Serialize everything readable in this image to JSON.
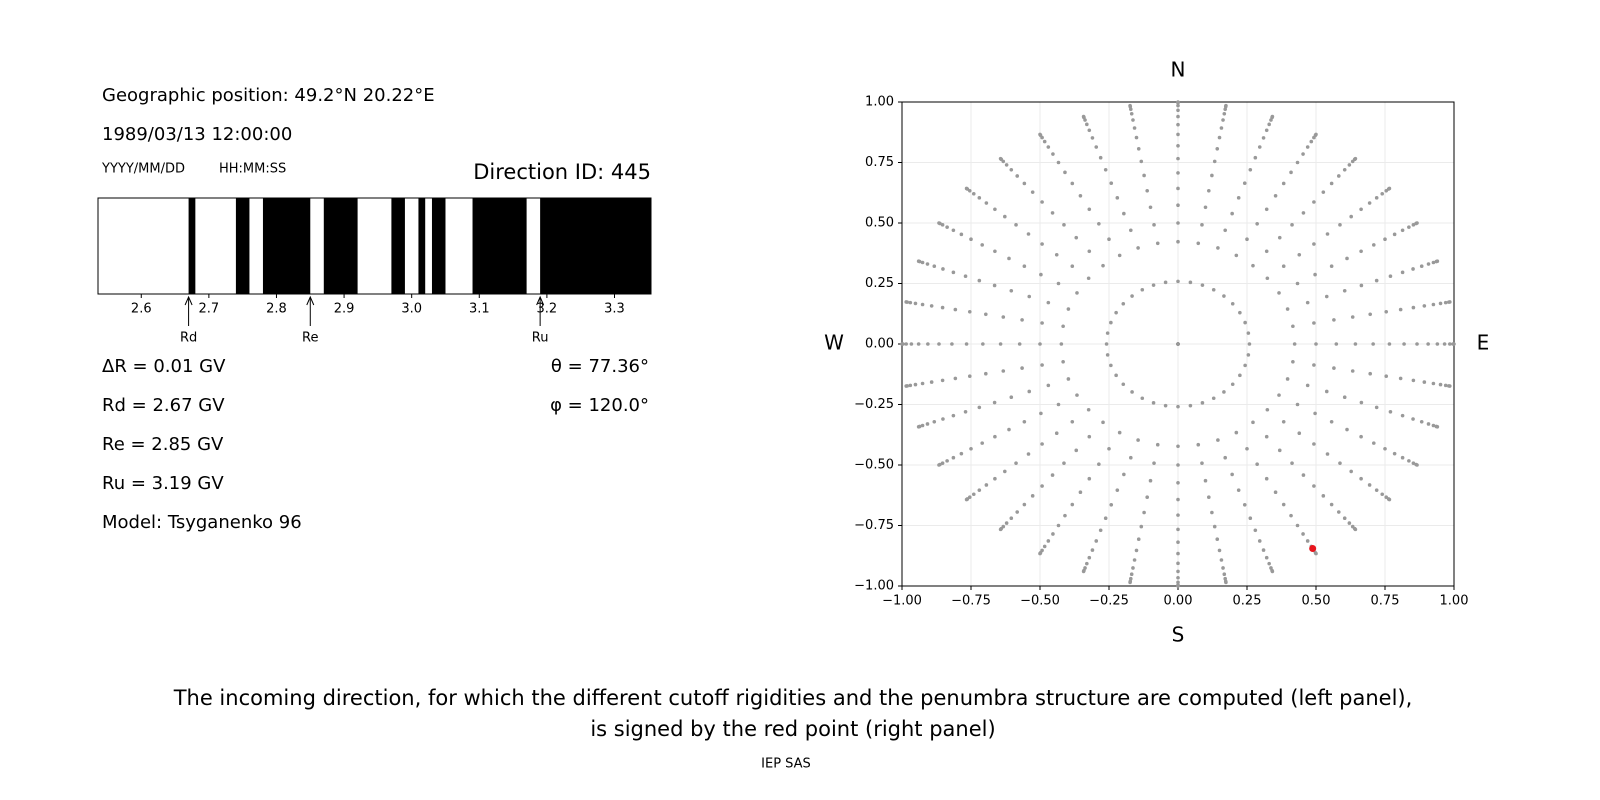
{
  "header": {
    "position": "Geographic position: 49.2°N 20.22°E",
    "datetime": "1989/03/13 12:00:00",
    "date_format": "YYYY/MM/DD",
    "time_format": "HH:MM:SS",
    "direction_id": "Direction ID: 445"
  },
  "results": [
    "ΔR = 0.01 GV",
    "Rd = 2.67 GV",
    "Re = 2.85 GV",
    "Ru = 3.19 GV",
    "Model: Tsyganenko 96"
  ],
  "angles": [
    "θ = 77.36°",
    "φ = 120.0°"
  ],
  "caption": [
    "The incoming direction, for which the different cutoff rigidities and the penumbra structure are computed (left panel),",
    "is signed by the red point (right panel)"
  ],
  "credit": "IEP SAS",
  "chart_data": [
    {
      "type": "penumbra",
      "color": "#000000",
      "bands": [
        [
          2.67,
          2.68
        ],
        [
          2.74,
          2.76
        ],
        [
          2.78,
          2.85
        ],
        [
          2.87,
          2.92
        ],
        [
          2.97,
          2.99
        ],
        [
          3.01,
          3.02
        ],
        [
          3.03,
          3.05
        ],
        [
          3.09,
          3.17
        ],
        [
          3.19,
          3.354
        ]
      ],
      "markers": [
        {
          "name": "Rd",
          "value": 2.67
        },
        {
          "name": "Re",
          "value": 2.85
        },
        {
          "name": "Ru",
          "value": 3.19
        }
      ],
      "xlim": [
        2.536,
        3.354
      ],
      "xticks": [
        2.6,
        2.7,
        2.8,
        2.9,
        {
          "value": 3,
          "label": "3.0"
        },
        3.1,
        3.2,
        3.3
      ]
    },
    {
      "type": "sky",
      "grid": true,
      "color": "#999999",
      "labels": {
        "top": "N",
        "bottom": "S",
        "left": "W",
        "right": "E"
      },
      "directions": {
        "zeniths": [
          0,
          15,
          25,
          30,
          35,
          40,
          45,
          50,
          55,
          60,
          65,
          70,
          75,
          80,
          85,
          90
        ],
        "azimuths": [
          0,
          10,
          20,
          30,
          40,
          50,
          60,
          70,
          80,
          90,
          100,
          110,
          120,
          130,
          140,
          150,
          160,
          170,
          180,
          190,
          200,
          210,
          220,
          230,
          240,
          250,
          260,
          270,
          280,
          290,
          300,
          310,
          320,
          330,
          340,
          350
        ]
      },
      "selected": {
        "zenith": 77.36,
        "azimuth": 120.0,
        "color": "#e8141c"
      },
      "xlim": [
        -1,
        1
      ],
      "ylim": [
        -1,
        1
      ],
      "xticks": [
        {
          "value": -1,
          "label": "−1.00"
        },
        {
          "value": -0.75,
          "label": "−0.75"
        },
        {
          "value": -0.5,
          "label": "−0.50"
        },
        {
          "value": -0.25,
          "label": "−0.25"
        },
        {
          "value": 0,
          "label": "0.00"
        },
        {
          "value": 0.25,
          "label": "0.25"
        },
        {
          "value": 0.5,
          "label": "0.50"
        },
        {
          "value": 0.75,
          "label": "0.75"
        },
        {
          "value": 1,
          "label": "1.00"
        }
      ],
      "yticks": [
        {
          "value": -1,
          "label": "−1.00"
        },
        {
          "value": -0.75,
          "label": "−0.75"
        },
        {
          "value": -0.5,
          "label": "−0.50"
        },
        {
          "value": -0.25,
          "label": "−0.25"
        },
        {
          "value": 0,
          "label": "0.00"
        },
        {
          "value": 0.25,
          "label": "0.25"
        },
        {
          "value": 0.5,
          "label": "0.50"
        },
        {
          "value": 0.75,
          "label": "0.75"
        },
        {
          "value": 1,
          "label": "1.00"
        }
      ]
    }
  ]
}
